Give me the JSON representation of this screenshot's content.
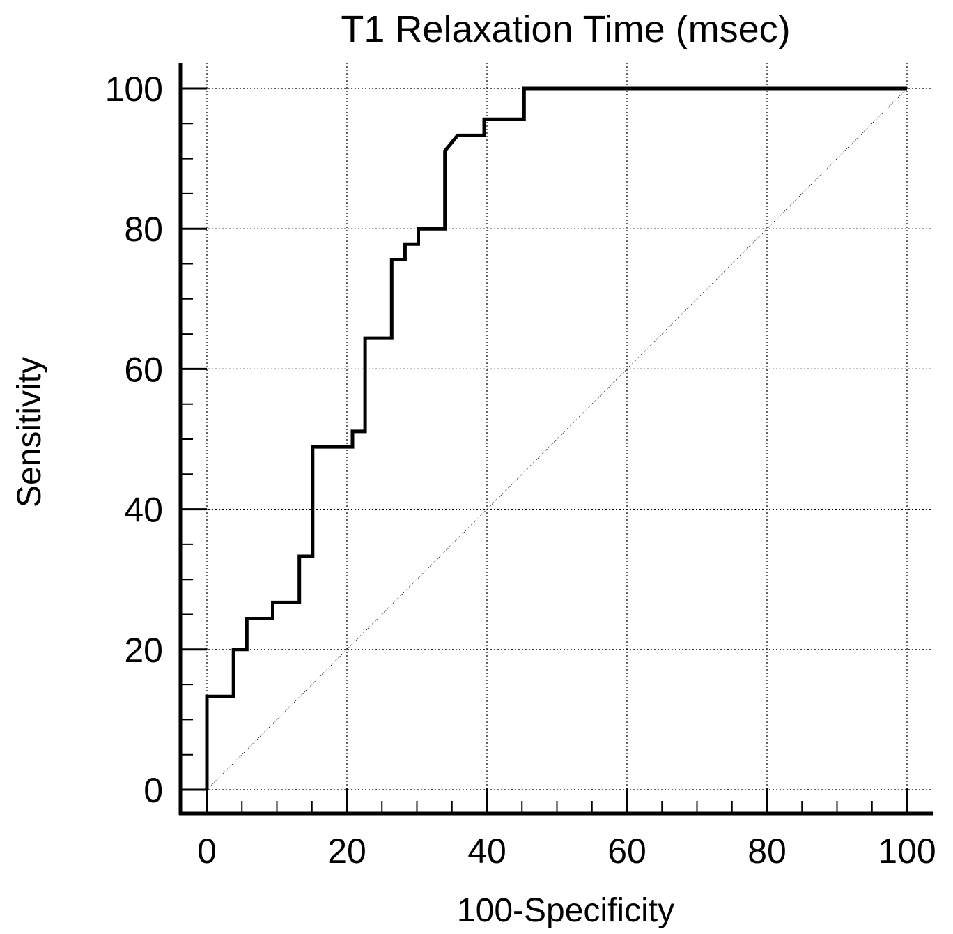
{
  "chart_data": {
    "type": "line",
    "title": "T1 Relaxation Time (msec)",
    "xlabel": "100-Specificity",
    "ylabel": "Sensitivity",
    "xlim": [
      0,
      100
    ],
    "ylim": [
      0,
      100
    ],
    "xticks": [
      0,
      20,
      40,
      60,
      80,
      100
    ],
    "yticks": [
      0,
      20,
      40,
      60,
      80,
      100
    ],
    "grid": true,
    "series": [
      {
        "role": "roc-curve",
        "style": "step",
        "points": [
          [
            0,
            0
          ],
          [
            0,
            13.3
          ],
          [
            3.8,
            13.3
          ],
          [
            3.8,
            20
          ],
          [
            5.7,
            20
          ],
          [
            5.7,
            24.4
          ],
          [
            9.4,
            24.4
          ],
          [
            9.4,
            26.7
          ],
          [
            13.2,
            26.7
          ],
          [
            13.2,
            33.3
          ],
          [
            15.1,
            33.3
          ],
          [
            15.1,
            48.9
          ],
          [
            20.8,
            48.9
          ],
          [
            20.8,
            51.1
          ],
          [
            22.6,
            51.1
          ],
          [
            22.6,
            64.4
          ],
          [
            26.4,
            64.4
          ],
          [
            26.4,
            75.6
          ],
          [
            28.3,
            75.6
          ],
          [
            28.3,
            77.8
          ],
          [
            30.2,
            77.8
          ],
          [
            30.2,
            80
          ],
          [
            34,
            80
          ],
          [
            34,
            91.1
          ],
          [
            35.8,
            93.3
          ],
          [
            39.6,
            93.3
          ],
          [
            39.6,
            95.6
          ],
          [
            45.3,
            95.6
          ],
          [
            45.3,
            100
          ],
          [
            100,
            100
          ]
        ]
      },
      {
        "role": "reference-diagonal",
        "style": "dotted",
        "points": [
          [
            0,
            0
          ],
          [
            100,
            100
          ]
        ]
      }
    ]
  }
}
